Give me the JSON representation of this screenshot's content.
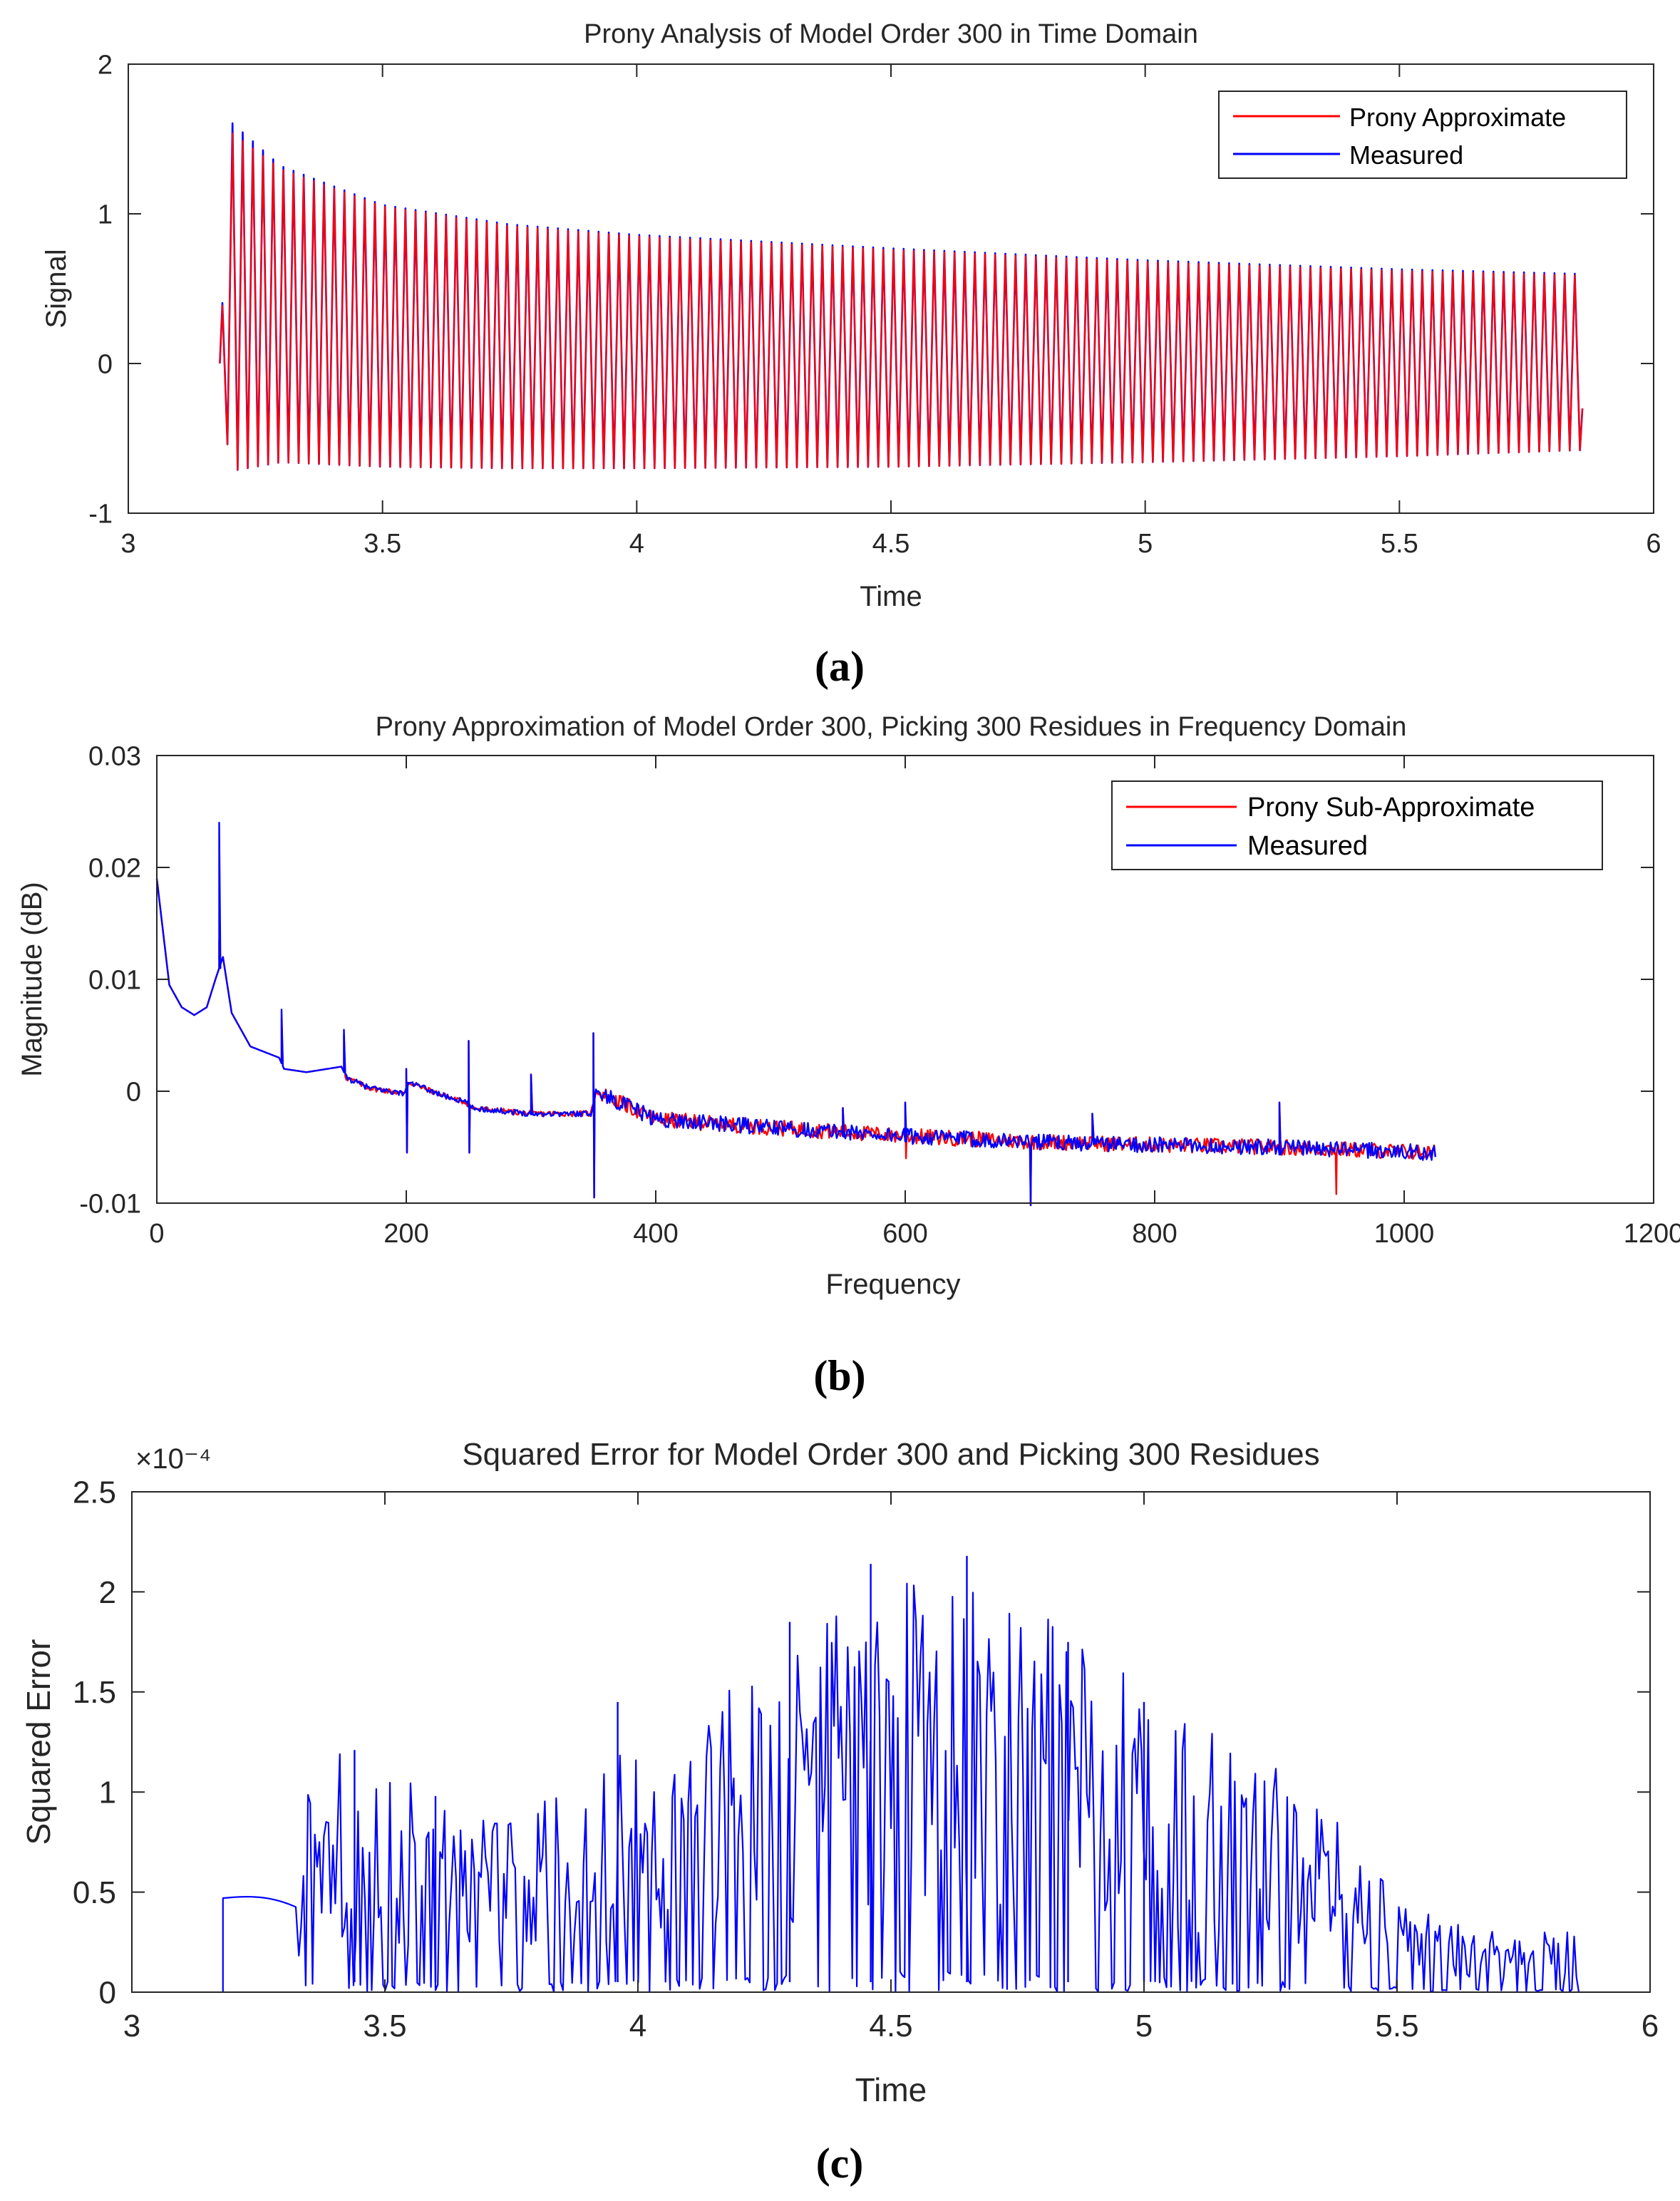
{
  "figure": {
    "captions": [
      "(a)",
      "(b)",
      "(c)"
    ]
  },
  "chart_data": [
    {
      "type": "line",
      "id": "a",
      "title": "Prony Analysis of Model Order 300 in Time Domain",
      "xlabel": "Time",
      "ylabel": "Signal",
      "xlim": [
        3,
        6
      ],
      "ylim": [
        -1,
        2
      ],
      "xticks": [
        3,
        3.5,
        4,
        4.5,
        5,
        5.5,
        6
      ],
      "xtick_labels": [
        "3",
        "3.5",
        "4",
        "4.5",
        "5",
        "5.5",
        "6"
      ],
      "yticks": [
        -1,
        0,
        1,
        2
      ],
      "ytick_labels": [
        "-1",
        "0",
        "1",
        "2"
      ],
      "legend_position": "top-right",
      "series": [
        {
          "name": "Prony Approximate",
          "color": "#ff0000",
          "start_time": 3.18,
          "end_time": 5.86,
          "cycles": 134,
          "envelope_time": [
            3.18,
            3.2,
            3.3,
            3.5,
            3.75,
            4.0,
            4.5,
            5.0,
            5.5,
            5.85
          ],
          "upper": [
            0.0,
            1.55,
            1.3,
            1.05,
            0.92,
            0.85,
            0.76,
            0.68,
            0.62,
            0.59
          ],
          "lower": [
            0.0,
            -0.72,
            -0.66,
            -0.69,
            -0.7,
            -0.7,
            -0.69,
            -0.66,
            -0.62,
            -0.58
          ]
        },
        {
          "name": "Measured",
          "color": "#0000ff",
          "start_time": 3.18,
          "end_time": 5.86,
          "cycles": 134,
          "envelope_time": [
            3.18,
            3.2,
            3.3,
            3.5,
            3.75,
            4.0,
            4.5,
            5.0,
            5.5,
            5.85
          ],
          "upper": [
            0.0,
            1.62,
            1.32,
            1.06,
            0.93,
            0.86,
            0.77,
            0.69,
            0.63,
            0.6
          ],
          "lower": [
            0.0,
            -0.72,
            -0.66,
            -0.69,
            -0.7,
            -0.7,
            -0.69,
            -0.66,
            -0.62,
            -0.58
          ]
        }
      ]
    },
    {
      "type": "line",
      "id": "b",
      "title": "Prony Approximation of Model Order 300, Picking 300 Residues in Frequency Domain",
      "xlabel": "Frequency",
      "ylabel": "Magnitude (dB)",
      "xlim": [
        0,
        1200
      ],
      "ylim": [
        -0.01,
        0.03
      ],
      "xticks": [
        0,
        200,
        400,
        600,
        800,
        1000,
        1200
      ],
      "xtick_labels": [
        "0",
        "200",
        "400",
        "600",
        "800",
        "1000",
        "1200"
      ],
      "yticks": [
        -0.01,
        0,
        0.01,
        0.02,
        0.03
      ],
      "ytick_labels": [
        "-0.01",
        "0",
        "0.01",
        "0.02",
        "0.03"
      ],
      "legend_position": "top-right",
      "series": [
        {
          "name": "Prony Sub-Approximate",
          "color": "#ff0000"
        },
        {
          "name": "Measured",
          "color": "#0000ff"
        }
      ],
      "baseline": {
        "x": [
          0,
          10,
          20,
          30,
          40,
          47,
          53,
          60,
          75,
          98,
          102,
          120,
          148,
          152,
          170,
          198,
          202,
          230,
          248,
          252,
          300,
          348,
          352,
          400,
          500,
          600,
          700,
          800,
          900,
          1025
        ],
        "y": [
          0.019,
          0.0095,
          0.0075,
          0.0068,
          0.0075,
          0.01,
          0.012,
          0.007,
          0.004,
          0.003,
          0.002,
          0.0017,
          0.0022,
          0.0012,
          0.0003,
          -0.0002,
          0.0008,
          -0.0004,
          -0.001,
          -0.0015,
          -0.002,
          -0.002,
          0.0,
          -0.0025,
          -0.0033,
          -0.004,
          -0.0045,
          -0.0048,
          -0.005,
          -0.0055
        ]
      },
      "peaks": [
        {
          "x": 50,
          "measured": 0.024,
          "prony": 0.0135
        },
        {
          "x": 100,
          "measured": 0.0073,
          "prony": 0.0065
        },
        {
          "x": 150,
          "measured": 0.0055,
          "prony": 0.005
        },
        {
          "x": 200,
          "measured": 0.002,
          "dip": -0.0055
        },
        {
          "x": 250,
          "measured": 0.0045,
          "dip": -0.0055
        },
        {
          "x": 300,
          "measured": 0.0015
        },
        {
          "x": 350,
          "measured": 0.0052,
          "dip": -0.0095
        },
        {
          "x": 550,
          "measured": -0.0015
        },
        {
          "x": 600,
          "measured": -0.001,
          "prony_dip": -0.006
        },
        {
          "x": 700,
          "dip": -0.0102
        },
        {
          "x": 750,
          "measured": -0.002
        },
        {
          "x": 900,
          "measured": -0.001
        },
        {
          "x": 945,
          "prony_dip": -0.0092
        }
      ]
    },
    {
      "type": "line",
      "id": "c",
      "title": "Squared Error for Model Order 300 and Picking 300 Residues",
      "xlabel": "Time",
      "ylabel": "Squared Error",
      "exponent_label": "×10⁻⁴",
      "xlim": [
        3,
        6
      ],
      "ylim": [
        0,
        2.5
      ],
      "xticks": [
        3,
        3.5,
        4,
        4.5,
        5,
        5.5,
        6
      ],
      "xtick_labels": [
        "3",
        "3.5",
        "4",
        "4.5",
        "5",
        "5.5",
        "6"
      ],
      "yticks": [
        0,
        0.5,
        1,
        1.5,
        2,
        2.5
      ],
      "ytick_labels": [
        "0",
        "0.5",
        "1",
        "1.5",
        "2",
        "2.5"
      ],
      "series": [
        {
          "name": "Squared Error",
          "color": "#0000ff",
          "start_time": 3.18,
          "end_time": 5.86,
          "envelope_time": [
            3.18,
            3.33,
            3.34,
            3.4,
            3.5,
            3.6,
            3.75,
            4.0,
            4.25,
            4.5,
            4.65,
            4.75,
            5.0,
            5.25,
            5.4,
            5.5,
            5.6,
            5.75,
            5.86
          ],
          "envelope_max": [
            0.55,
            0.45,
            1.0,
            1.3,
            1.1,
            1.0,
            0.85,
            1.3,
            1.6,
            2.1,
            2.18,
            1.95,
            1.6,
            1.2,
            0.8,
            0.5,
            0.35,
            0.3,
            0.3
          ],
          "peak_values": [
            {
              "x": 3.44,
              "y": 1.21
            },
            {
              "x": 3.6,
              "y": 0.98
            },
            {
              "x": 3.96,
              "y": 1.45
            },
            {
              "x": 4.3,
              "y": 1.85
            },
            {
              "x": 4.46,
              "y": 2.14
            },
            {
              "x": 4.65,
              "y": 2.18
            },
            {
              "x": 4.85,
              "y": 1.75
            },
            {
              "x": 5.0,
              "y": 1.45
            }
          ]
        }
      ]
    }
  ]
}
